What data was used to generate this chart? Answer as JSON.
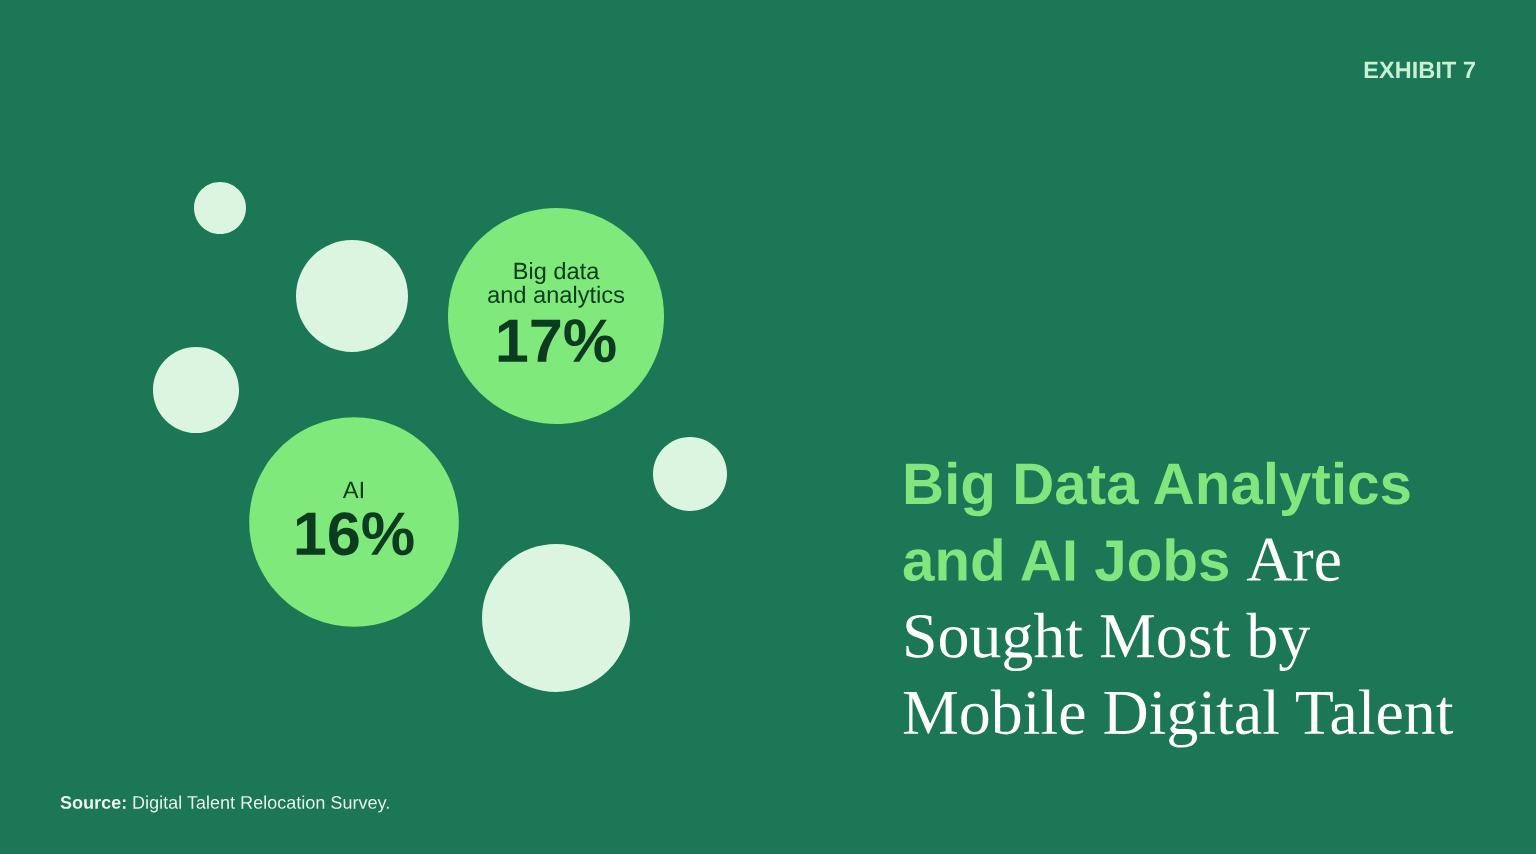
{
  "chart_data": {
    "type": "other",
    "title": "Big Data Analytics and AI Jobs Are Sought Most by Mobile Digital Talent",
    "categories": [
      "Big data\nand analytics",
      "AI"
    ],
    "values": [
      17,
      16
    ],
    "value_labels": [
      "17%",
      "16%"
    ],
    "colors": [
      "#80e97b",
      "#80e97b"
    ],
    "annotations": [
      "EXHIBIT 7",
      "Source: Digital Talent Relocation Survey."
    ]
  }
}
